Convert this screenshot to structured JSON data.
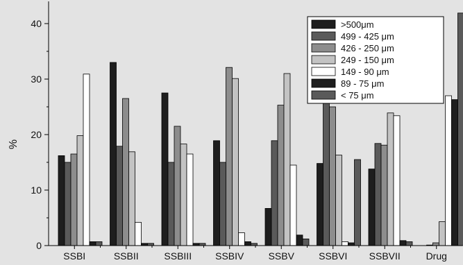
{
  "chart_data": {
    "type": "bar",
    "xlabel": "",
    "ylabel": "%",
    "ylim": [
      0,
      44
    ],
    "yticks": [
      "0",
      "10",
      "20",
      "30",
      "40"
    ],
    "categories": [
      "SSBI",
      "SSBII",
      "SSBIII",
      "SSBIV",
      "SSBV",
      "SSBVI",
      "SSBVII",
      "Drug"
    ],
    "legend_position": "top-right",
    "series": [
      {
        "name": ">500μm",
        "color": "#1e1e1e",
        "values": [
          16.2,
          33.0,
          27.5,
          18.9,
          6.7,
          14.8,
          13.8,
          0.0
        ]
      },
      {
        "name": "499 - 425 μm",
        "color": "#5a5a5a",
        "values": [
          15.0,
          17.9,
          15.0,
          15.0,
          18.9,
          26.5,
          18.4,
          0.1
        ]
      },
      {
        "name": "426 - 250 μm",
        "color": "#8d8d8d",
        "values": [
          16.5,
          26.5,
          21.5,
          32.1,
          25.3,
          25.0,
          18.1,
          0.5
        ]
      },
      {
        "name": "249 - 150 μm",
        "color": "#c3c3c3",
        "values": [
          19.8,
          16.9,
          18.3,
          30.1,
          31.0,
          16.3,
          23.9,
          4.3
        ]
      },
      {
        "name": "149 - 90 μm",
        "color": "#ffffff",
        "values": [
          30.9,
          4.2,
          16.5,
          2.3,
          14.5,
          0.7,
          23.4,
          27.0
        ]
      },
      {
        "name": "89 - 75 μm",
        "color": "#1e1e1e",
        "values": [
          0.7,
          0.4,
          0.4,
          0.7,
          1.9,
          0.5,
          0.9,
          26.3
        ]
      },
      {
        "name": "< 75 μm",
        "color": "#5a5a5a",
        "values": [
          0.7,
          0.4,
          0.4,
          0.4,
          1.2,
          15.5,
          0.7,
          41.9
        ]
      }
    ]
  }
}
